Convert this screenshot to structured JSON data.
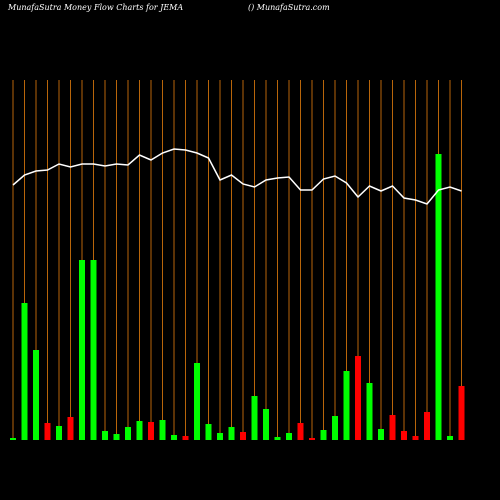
{
  "chart_data": {
    "type": "bar",
    "title": "MunafaSutra  Money Flow  Charts for JEMA",
    "subtitle": "() MunafaSutra.com",
    "categories": [
      null,
      null,
      null,
      null,
      null,
      null,
      null,
      null,
      null,
      null,
      null,
      null,
      null,
      null,
      null,
      null,
      null,
      null,
      null,
      null,
      null,
      null,
      null,
      null,
      null,
      null,
      null,
      null,
      null,
      null,
      null,
      null,
      null,
      null,
      null,
      null,
      null,
      null,
      null,
      null
    ],
    "values": [
      2,
      137,
      90,
      17,
      14,
      23,
      180,
      180,
      9,
      6,
      13,
      19,
      18,
      20,
      5,
      4,
      77,
      16,
      7,
      13,
      8,
      44,
      31,
      3,
      7,
      17,
      2,
      10,
      24,
      69,
      84,
      57,
      11,
      25,
      9,
      4,
      28,
      286,
      4,
      54
    ],
    "colors": [
      "#00ff00",
      "#00ff00",
      "#00ff00",
      "#ff0000",
      "#00ff00",
      "#ff0000",
      "#00ff00",
      "#00ff00",
      "#00ff00",
      "#00ff00",
      "#00ff00",
      "#00ff00",
      "#ff0000",
      "#00ff00",
      "#00ff00",
      "#ff0000",
      "#00ff00",
      "#00ff00",
      "#00ff00",
      "#00ff00",
      "#ff0000",
      "#00ff00",
      "#00ff00",
      "#00ff00",
      "#00ff00",
      "#ff0000",
      "#ff0000",
      "#00ff00",
      "#00ff00",
      "#00ff00",
      "#ff0000",
      "#00ff00",
      "#00ff00",
      "#ff0000",
      "#ff0000",
      "#ff0000",
      "#ff0000",
      "#00ff00",
      "#00ff00",
      "#ff0000"
    ],
    "line_values": [
      255,
      265,
      269,
      270,
      276,
      273,
      276,
      276,
      274,
      276,
      275,
      285,
      280,
      287,
      291,
      290,
      287,
      282,
      260,
      265,
      256,
      253,
      260,
      262,
      263,
      250,
      250,
      261,
      264,
      257,
      243,
      254,
      249,
      254,
      242,
      240,
      236,
      250,
      253,
      249
    ],
    "line_color": "#ffffff",
    "grid_color": "#b8650a"
  }
}
